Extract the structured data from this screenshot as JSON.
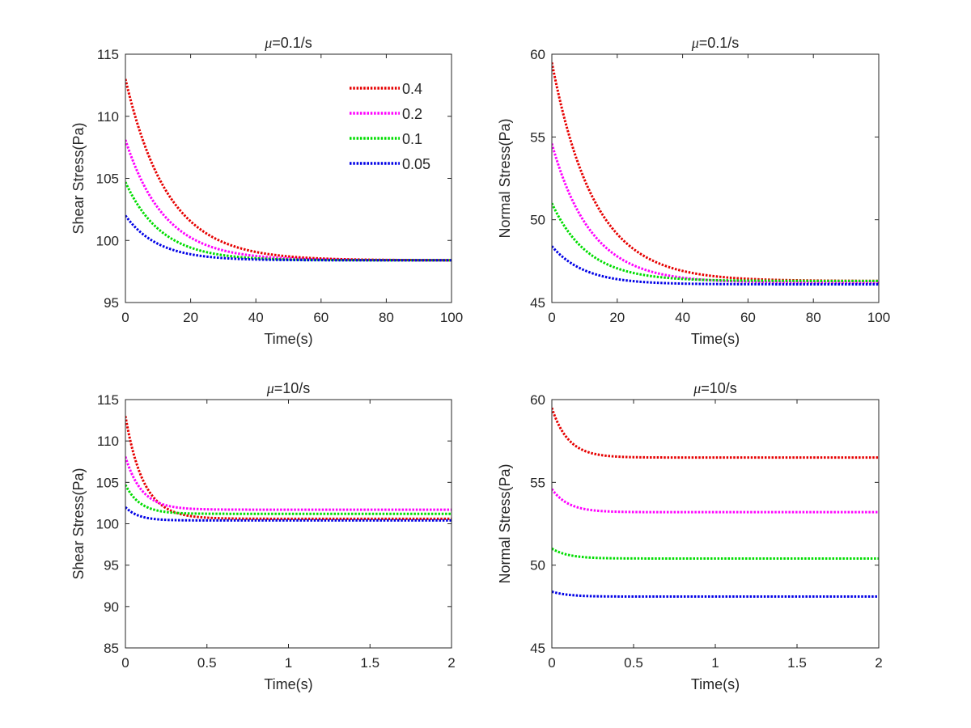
{
  "figure": {
    "subtitle_mu": "μ"
  },
  "chart_data": [
    {
      "type": "line",
      "title": "μ=0.1/s",
      "title_rest": "=0.1/s",
      "xlabel": "Time(s)",
      "ylabel": "Shear Stress(Pa)",
      "xlim": [
        0,
        100
      ],
      "ylim": [
        95,
        115
      ],
      "xticks": [
        0,
        20,
        40,
        60,
        80,
        100
      ],
      "yticks": [
        95,
        100,
        105,
        110,
        115
      ],
      "xtick_labels": [
        "0",
        "20",
        "40",
        "60",
        "80",
        "100"
      ],
      "ytick_labels": [
        "95",
        "100",
        "105",
        "110",
        "115"
      ],
      "legend": {
        "position": "top-right",
        "entries": [
          "0.4",
          "0.2",
          "0.1",
          "0.05"
        ]
      },
      "series": [
        {
          "name": "0.4",
          "color": "#e60000",
          "start": 113.0,
          "end": 98.4,
          "tau": 13
        },
        {
          "name": "0.2",
          "color": "#ff00ff",
          "start": 108.1,
          "end": 98.4,
          "tau": 12
        },
        {
          "name": "0.1",
          "color": "#00dd00",
          "start": 104.7,
          "end": 98.4,
          "tau": 11
        },
        {
          "name": "0.05",
          "color": "#0000e6",
          "start": 102.0,
          "end": 98.4,
          "tau": 10
        }
      ]
    },
    {
      "type": "line",
      "title": "μ=0.1/s",
      "title_rest": "=0.1/s",
      "xlabel": "Time(s)",
      "ylabel": "Normal Stress(Pa)",
      "xlim": [
        0,
        100
      ],
      "ylim": [
        45,
        60
      ],
      "xticks": [
        0,
        20,
        40,
        60,
        80,
        100
      ],
      "yticks": [
        45,
        50,
        55,
        60
      ],
      "xtick_labels": [
        "0",
        "20",
        "40",
        "60",
        "80",
        "100"
      ],
      "ytick_labels": [
        "45",
        "50",
        "55",
        "60"
      ],
      "series": [
        {
          "name": "0.4",
          "color": "#e60000",
          "start": 59.5,
          "end": 46.3,
          "tau": 13
        },
        {
          "name": "0.2",
          "color": "#ff00ff",
          "start": 54.6,
          "end": 46.2,
          "tau": 12
        },
        {
          "name": "0.1",
          "color": "#00dd00",
          "start": 51.0,
          "end": 46.3,
          "tau": 11
        },
        {
          "name": "0.05",
          "color": "#0000e6",
          "start": 48.4,
          "end": 46.1,
          "tau": 10
        }
      ]
    },
    {
      "type": "line",
      "title": "μ=10/s",
      "title_rest": "=10/s",
      "xlabel": "Time(s)",
      "ylabel": "Shear Stress(Pa)",
      "xlim": [
        0,
        2
      ],
      "ylim": [
        85,
        115
      ],
      "xticks": [
        0,
        0.5,
        1,
        1.5,
        2
      ],
      "yticks": [
        85,
        90,
        95,
        100,
        105,
        110,
        115
      ],
      "xtick_labels": [
        "0",
        "0.5",
        "1",
        "1.5",
        "2"
      ],
      "ytick_labels": [
        "85",
        "90",
        "95",
        "100",
        "105",
        "110",
        "115"
      ],
      "series": [
        {
          "name": "0.4",
          "color": "#e60000",
          "start": 113.0,
          "end": 100.6,
          "tau": 0.11
        },
        {
          "name": "0.2",
          "color": "#ff00ff",
          "start": 108.1,
          "end": 101.7,
          "tau": 0.1
        },
        {
          "name": "0.1",
          "color": "#00dd00",
          "start": 104.7,
          "end": 101.2,
          "tau": 0.09
        },
        {
          "name": "0.05",
          "color": "#0000e6",
          "start": 102.0,
          "end": 100.4,
          "tau": 0.08
        }
      ]
    },
    {
      "type": "line",
      "title": "μ=10/s",
      "title_rest": "=10/s",
      "xlabel": "Time(s)",
      "ylabel": "Normal Stress(Pa)",
      "xlim": [
        0,
        2
      ],
      "ylim": [
        45,
        60
      ],
      "xticks": [
        0,
        0.5,
        1,
        1.5,
        2
      ],
      "yticks": [
        45,
        50,
        55,
        60
      ],
      "xtick_labels": [
        "0",
        "0.5",
        "1",
        "1.5",
        "2"
      ],
      "ytick_labels": [
        "45",
        "50",
        "55",
        "60"
      ],
      "series": [
        {
          "name": "0.4",
          "color": "#e60000",
          "start": 59.5,
          "end": 56.5,
          "tau": 0.1
        },
        {
          "name": "0.2",
          "color": "#ff00ff",
          "start": 54.6,
          "end": 53.2,
          "tau": 0.1
        },
        {
          "name": "0.1",
          "color": "#00dd00",
          "start": 51.0,
          "end": 50.4,
          "tau": 0.1
        },
        {
          "name": "0.05",
          "color": "#0000e6",
          "start": 48.4,
          "end": 48.1,
          "tau": 0.1
        }
      ]
    }
  ]
}
